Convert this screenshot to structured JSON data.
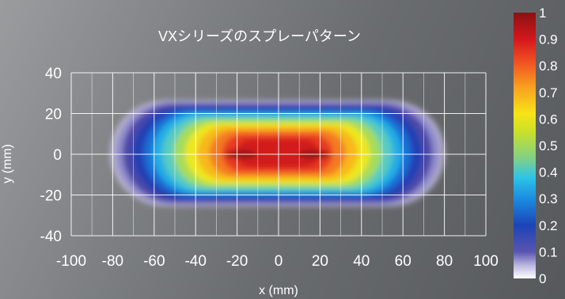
{
  "chart_data": {
    "type": "heatmap",
    "title": "VXシリーズのスプレーパターン",
    "xlabel": "x (mm)",
    "ylabel": "y (mm)",
    "xlim": [
      -100,
      100
    ],
    "ylim": [
      -40,
      40
    ],
    "x_ticks": [
      "-100",
      "-80",
      "-60",
      "-40",
      "-20",
      "0",
      "20",
      "40",
      "60",
      "80",
      "100"
    ],
    "y_ticks": [
      "40",
      "20",
      "0",
      "-20",
      "-40"
    ],
    "grid": true,
    "colorbar": {
      "ticks": [
        "1",
        "0.9",
        "0.8",
        "0.7",
        "0.6",
        "0.5",
        "0.4",
        "0.3",
        "0.2",
        "0.1",
        "0"
      ],
      "range": [
        0,
        1
      ],
      "colormap": "jet"
    },
    "pattern": {
      "outer_x_extent": [
        -82,
        82
      ],
      "outer_y_extent": [
        -26,
        27
      ],
      "peaks": [
        {
          "x": -18,
          "y": 0,
          "value": 1.0
        },
        {
          "x": 17,
          "y": 0,
          "value": 1.0
        }
      ]
    }
  }
}
